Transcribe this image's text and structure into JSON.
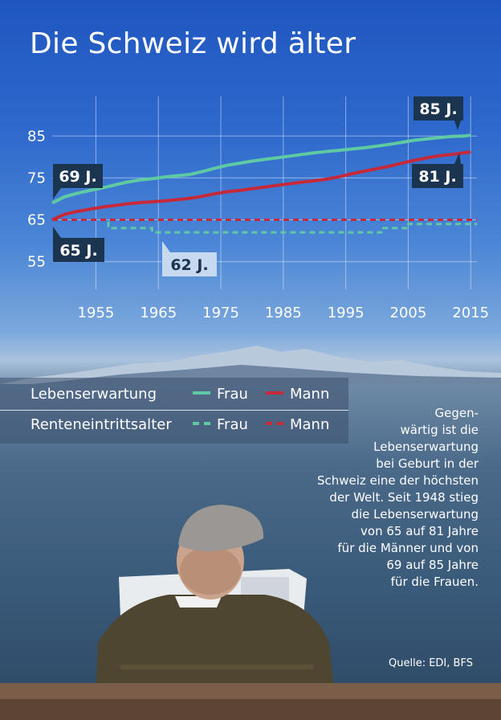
{
  "title": "Die Schweiz wird älter",
  "chart_data": {
    "type": "line",
    "x_ticks": [
      1955,
      1965,
      1975,
      1985,
      1995,
      2005,
      2015
    ],
    "y_ticks": [
      55,
      65,
      75,
      85
    ],
    "xlim": [
      1948,
      2016
    ],
    "ylim": [
      53,
      91
    ],
    "grid": true,
    "series": [
      {
        "name": "Frau",
        "group": "Lebenserwartung",
        "style": "solid",
        "color": "#5ec9a2",
        "x": [
          1948,
          1950,
          1952,
          1954,
          1956,
          1958,
          1960,
          1962,
          1964,
          1966,
          1968,
          1970,
          1972,
          1974,
          1976,
          1978,
          1980,
          1982,
          1984,
          1986,
          1988,
          1990,
          1992,
          1994,
          1996,
          1998,
          2000,
          2002,
          2004,
          2006,
          2008,
          2010,
          2012,
          2014,
          2015
        ],
        "values": [
          69,
          70.5,
          71.3,
          72,
          72.6,
          73.3,
          74,
          74.5,
          74.8,
          75.2,
          75.5,
          75.8,
          76.5,
          77.3,
          78,
          78.5,
          79,
          79.4,
          79.8,
          80.2,
          80.6,
          81,
          81.3,
          81.6,
          81.9,
          82.2,
          82.6,
          83,
          83.5,
          84,
          84.3,
          84.6,
          84.9,
          85,
          85.2
        ]
      },
      {
        "name": "Mann",
        "group": "Lebenserwartung",
        "style": "solid",
        "color": "#c62a3a",
        "x": [
          1948,
          1950,
          1952,
          1954,
          1956,
          1958,
          1960,
          1962,
          1964,
          1966,
          1968,
          1970,
          1972,
          1974,
          1976,
          1978,
          1980,
          1982,
          1984,
          1986,
          1988,
          1990,
          1992,
          1994,
          1996,
          1998,
          2000,
          2002,
          2004,
          2006,
          2008,
          2010,
          2012,
          2014,
          2015
        ],
        "values": [
          65,
          66.3,
          67,
          67.5,
          68,
          68.4,
          68.8,
          69.1,
          69.3,
          69.5,
          69.8,
          70.1,
          70.6,
          71.2,
          71.7,
          72,
          72.4,
          72.8,
          73.2,
          73.6,
          74,
          74.3,
          74.7,
          75.3,
          76,
          76.6,
          77.2,
          77.8,
          78.5,
          79.2,
          79.8,
          80.3,
          80.6,
          81,
          81.2
        ]
      },
      {
        "name": "Frau",
        "group": "Renteneintrittsalter",
        "style": "dashed",
        "color": "#5ec9a2",
        "x": [
          1948,
          1957,
          1957,
          1964,
          1964,
          2001,
          2001,
          2005,
          2005,
          2016
        ],
        "values": [
          65,
          65,
          63,
          63,
          62,
          62,
          63,
          63,
          64,
          64
        ]
      },
      {
        "name": "Mann",
        "group": "Renteneintrittsalter",
        "style": "dashed",
        "color": "#c62a3a",
        "x": [
          1948,
          2016
        ],
        "values": [
          65,
          65
        ]
      }
    ],
    "annotations": [
      {
        "text": "85 J.",
        "x": 2015,
        "y": 85
      },
      {
        "text": "81 J.",
        "x": 2015,
        "y": 81
      },
      {
        "text": "69 J.",
        "x": 1948,
        "y": 69
      },
      {
        "text": "65 J.",
        "x": 1948,
        "y": 65
      },
      {
        "text": "62 J.",
        "x": 1964,
        "y": 62
      }
    ]
  },
  "legend": {
    "row1_label": "Lebenserwartung",
    "row2_label": "Renteneintrittsalter",
    "frau": "Frau",
    "mann": "Mann"
  },
  "note": "Gegen-\nwärtig ist die\nLebenserwartung\nbei Geburt in der\nSchweiz eine der höchsten\nder Welt. Seit 1948 stieg\ndie Lebenserwartung\nvon 65 auf 81 Jahre\nfür die Männer und von\n69 auf 85 Jahre\nfür die Frauen.",
  "source": "Quelle: EDI, BFS"
}
